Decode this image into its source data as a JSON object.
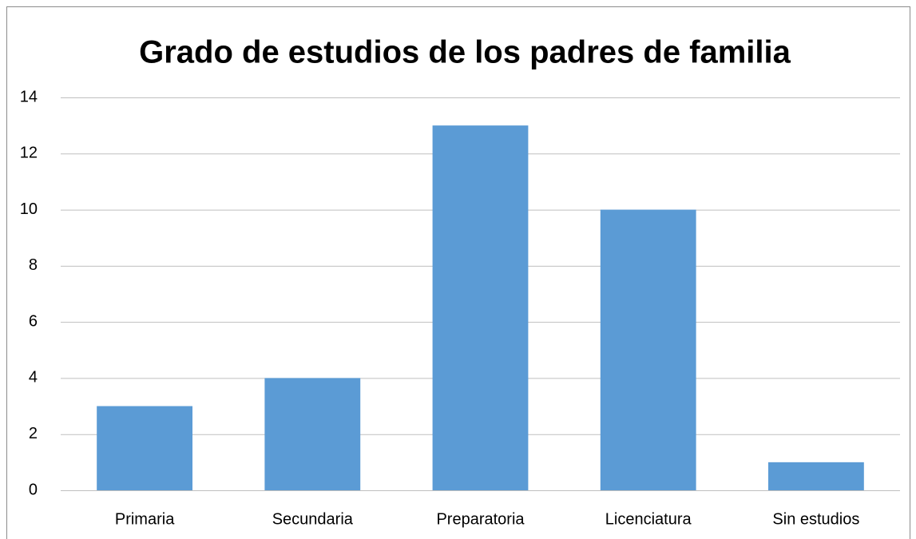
{
  "chart_data": {
    "type": "bar",
    "title": "Grado de estudios de los padres de familia",
    "categories": [
      "Primaria",
      "Secundaria",
      "Preparatoria",
      "Licenciatura",
      "Sin estudios"
    ],
    "values": [
      3,
      4,
      13,
      10,
      1
    ],
    "color": "#5b9bd5",
    "ylim": [
      0,
      14
    ],
    "yticks": [
      0,
      2,
      4,
      6,
      8,
      10,
      12,
      14
    ],
    "grid": true
  }
}
